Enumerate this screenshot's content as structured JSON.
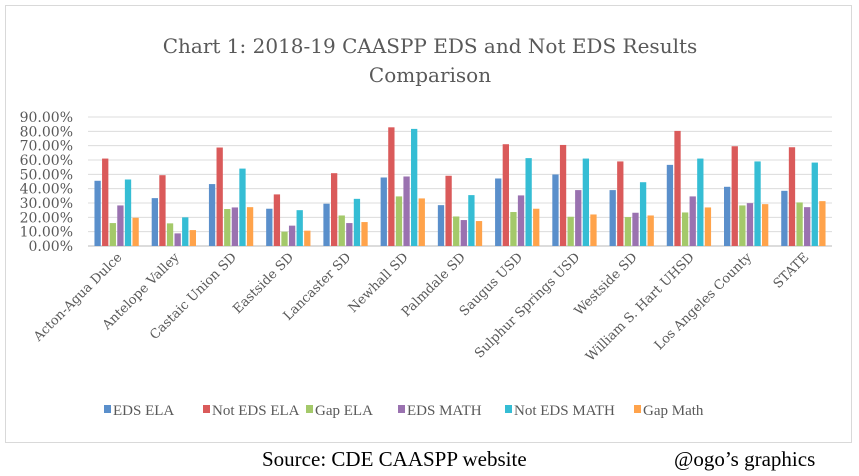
{
  "chart_data": {
    "type": "bar",
    "title_lines": [
      "Chart 1: 2018-19 CAASPP EDS and Not EDS Results",
      "Comparison"
    ],
    "xlabel": "",
    "ylabel": "",
    "ylim": [
      0,
      90
    ],
    "yticks": [
      "0.00%",
      "10.00%",
      "20.00%",
      "30.00%",
      "40.00%",
      "50.00%",
      "60.00%",
      "70.00%",
      "80.00%",
      "90.00%"
    ],
    "grid": true,
    "legend_placement": "bottom",
    "categories": [
      "Acton-Agua Dulce",
      "Antelope Valley",
      "Castaic Union SD",
      "Eastside SD",
      "Lancaster SD",
      "Newhall SD",
      "Palmdale SD",
      "Saugus USD",
      "Sulphur Springs USD",
      "Westside SD",
      "William S. Hart UHSD",
      "Los Angeles County",
      "STATE"
    ],
    "series": [
      {
        "name": "EDS ELA",
        "color": "#5a8fcb",
        "values": [
          45.5,
          33.4,
          43.2,
          26.0,
          29.5,
          47.8,
          28.5,
          47.1,
          49.9,
          39.0,
          56.6,
          41.3,
          38.5
        ]
      },
      {
        "name": "Not EDS ELA",
        "color": "#da5a5a",
        "values": [
          61.0,
          49.4,
          68.7,
          36.0,
          50.8,
          82.8,
          49.0,
          71.0,
          70.5,
          59.0,
          80.3,
          69.6,
          68.9
        ]
      },
      {
        "name": "Gap ELA",
        "color": "#a4c96a",
        "values": [
          16.0,
          15.8,
          25.8,
          10.0,
          21.3,
          34.6,
          20.6,
          23.7,
          20.4,
          20.2,
          23.4,
          28.3,
          30.4
        ]
      },
      {
        "name": "EDS MATH",
        "color": "#9a72b0",
        "values": [
          28.3,
          8.8,
          26.9,
          14.2,
          16.0,
          48.5,
          18.1,
          35.3,
          39.0,
          23.2,
          34.6,
          29.9,
          27.1
        ]
      },
      {
        "name": "Not EDS MATH",
        "color": "#35bdd4",
        "values": [
          46.4,
          20.0,
          54.0,
          25.0,
          32.9,
          81.7,
          35.5,
          61.3,
          61.0,
          44.5,
          61.0,
          59.0,
          58.2
        ]
      },
      {
        "name": "Gap Math",
        "color": "#ffa34b",
        "values": [
          19.7,
          11.1,
          27.1,
          10.7,
          16.7,
          33.2,
          17.4,
          26.0,
          22.0,
          21.3,
          26.9,
          29.2,
          31.3
        ]
      }
    ]
  },
  "footer": {
    "source": "Source: CDE CAASPP website",
    "credit": "@ogo’s graphics"
  }
}
